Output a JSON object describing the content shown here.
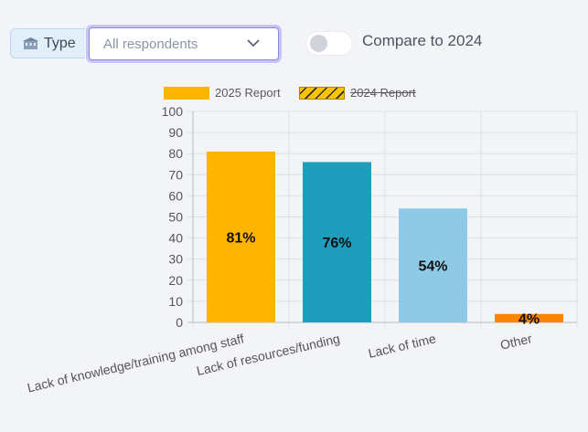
{
  "filters": {
    "type_label": "Type",
    "type_icon": "building-icon",
    "dropdown_value": "All respondents",
    "dropdown_icon": "chevron-down-icon",
    "compare_label": "Compare to 2024",
    "compare_enabled": false
  },
  "legend": [
    {
      "label": "2025 Report",
      "style": "solid",
      "color": "#ffb400",
      "active": true
    },
    {
      "label": "2024 Report",
      "style": "hatched",
      "color": "#f8c400",
      "active": false
    }
  ],
  "chart_data": {
    "type": "bar",
    "categories": [
      "Lack of knowledge/training among staff",
      "Lack of resources/funding",
      "Lack of time",
      "Other"
    ],
    "values": [
      81,
      76,
      54,
      4
    ],
    "data_labels": [
      "81%",
      "76%",
      "54%",
      "4%"
    ],
    "colors": [
      "#ffb400",
      "#1f9dbd",
      "#8ecae6",
      "#fb8500"
    ],
    "ylim": [
      0,
      100
    ],
    "yticks": [
      0,
      10,
      20,
      30,
      40,
      50,
      60,
      70,
      80,
      90,
      100
    ],
    "grid": true,
    "legend_position": "top"
  }
}
